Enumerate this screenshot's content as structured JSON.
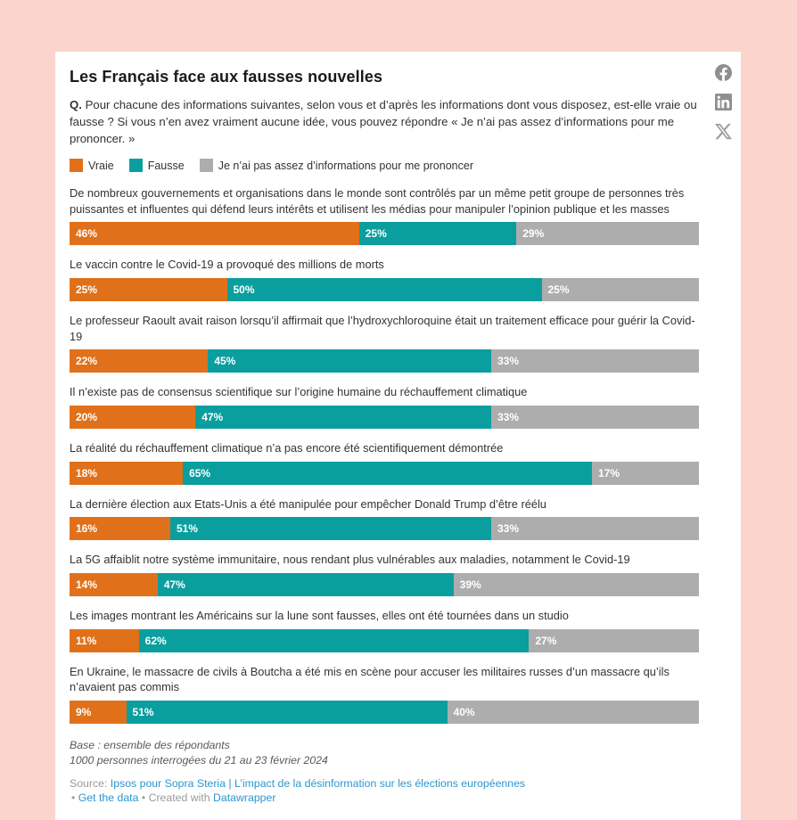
{
  "page": {
    "background_color": "#FBD5CD",
    "card_color": "#FFFFFF"
  },
  "header": {
    "title": "Les Français face aux fausses nouvelles",
    "question_prefix": "Q.",
    "question_text": " Pour chacune des informations suivantes, selon vous et d’après les informations dont vous disposez, est-elle vraie ou fausse ? Si vous n’en avez vraiment aucune idée, vous pouvez répondre « Je n’ai pas assez d’informations pour me prononcer. »"
  },
  "share": {
    "icons": [
      "facebook",
      "linkedin",
      "x"
    ]
  },
  "legend": {
    "items": [
      {
        "label": "Vraie",
        "color": "#E0711A"
      },
      {
        "label": "Fausse",
        "color": "#0B9E9E"
      },
      {
        "label": "Je n’ai pas assez d’informations pour me prononcer",
        "color": "#ADADAD"
      }
    ]
  },
  "chart_data": {
    "type": "bar",
    "orientation": "horizontal",
    "stacked": true,
    "unit": "%",
    "xlim": [
      0,
      100
    ],
    "grid": false,
    "legend_position": "top",
    "value_labels": "inside-start-white-bold",
    "series_names": [
      "Vraie",
      "Fausse",
      "Je n’ai pas assez d’informations pour me prononcer"
    ],
    "series_keys": [
      "vraie",
      "fausse",
      "nsp"
    ],
    "colors": [
      "#E0711A",
      "#0B9E9E",
      "#ADADAD"
    ],
    "categories": [
      "De nombreux gouvernements et organisations dans le monde sont contrôlés par un même petit groupe de personnes très puissantes et influentes qui défend leurs intérêts et utilisent les médias pour manipuler l’opinion publique et les masses",
      "Le vaccin contre le Covid-19 a provoqué des millions de morts",
      "Le professeur Raoult avait raison lorsqu’il affirmait que l’hydroxychloroquine était un traitement efficace pour guérir la Covid-19",
      "Il n’existe pas de consensus scientifique sur l’origine humaine du réchauffement climatique",
      "La réalité du réchauffement climatique n’a pas encore été scientifiquement démontrée",
      "La dernière élection aux Etats-Unis a été manipulée pour empêcher Donald Trump d’être réélu",
      "La 5G affaiblit notre système immunitaire, nous rendant plus vulnérables aux maladies, notamment le Covid-19",
      "Les images montrant les Américains sur la lune sont fausses, elles ont été tournées dans un studio",
      "En Ukraine, le massacre de civils à Boutcha a été mis en scène pour accuser les militaires russes d’un massacre qu’ils n’avaient pas commis"
    ],
    "values": [
      [
        46,
        25,
        29
      ],
      [
        25,
        50,
        25
      ],
      [
        22,
        45,
        33
      ],
      [
        20,
        47,
        33
      ],
      [
        18,
        65,
        17
      ],
      [
        16,
        51,
        33
      ],
      [
        14,
        47,
        39
      ],
      [
        11,
        62,
        27
      ],
      [
        9,
        51,
        40
      ]
    ]
  },
  "footer": {
    "base_line1": "Base : ensemble des répondants",
    "base_line2": "1000 personnes interrogées du 21 au 23 février 2024",
    "source_label": "Source: ",
    "source_link": "Ipsos pour Sopra Steria | L’impact de la désinformation sur les élections européennes",
    "bullet": "•",
    "get_data_label": "Get the data",
    "created_with_label": "Created with",
    "datawrapper_label": "Datawrapper"
  }
}
